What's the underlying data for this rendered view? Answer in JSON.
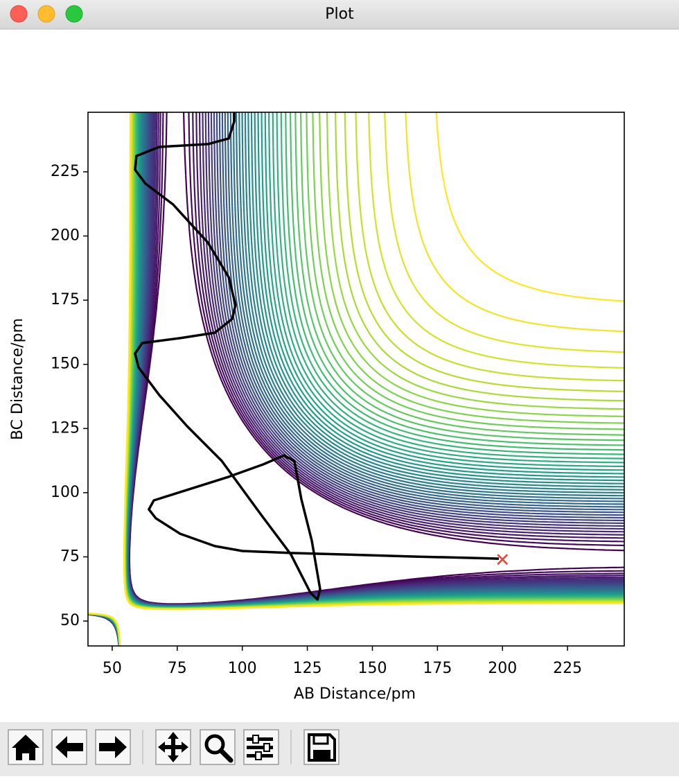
{
  "window": {
    "title": "Plot"
  },
  "chart_data": {
    "type": "contour",
    "xlabel": "AB Distance/pm",
    "ylabel": "BC Distance/pm",
    "xlim": [
      40.7,
      246.8
    ],
    "ylim": [
      40.3,
      248.2
    ],
    "xticks": [
      50,
      75,
      100,
      125,
      150,
      175,
      200,
      225
    ],
    "yticks": [
      50,
      75,
      100,
      125,
      150,
      175,
      200,
      225
    ],
    "colormap": "viridis",
    "trajectory": {
      "color": "#000000",
      "x": [
        198.6,
        188,
        166.7,
        140,
        118.7,
        100,
        89.4,
        76.1,
        66.8,
        64.1,
        66,
        76.1,
        94.8,
        108,
        116,
        120,
        122.7,
        126.7,
        129.9,
        128.9,
        126.2,
        118.7,
        106.7,
        92.1,
        78.8,
        68.1,
        60.1,
        58.8,
        61.5,
        76.1,
        89.4,
        96.1,
        97.4,
        94.8,
        86.8,
        73.4,
        62.8,
        58.8,
        59.3,
        68.1,
        86.8,
        94.8,
        96.9,
        96.9
      ],
      "y": [
        74.3,
        74.6,
        75.1,
        75.9,
        76.5,
        77.3,
        79.2,
        84,
        90,
        93.5,
        97,
        100.2,
        106.2,
        111,
        114.5,
        112.4,
        97.5,
        81.3,
        62.4,
        58.4,
        61,
        75.9,
        92.1,
        112.4,
        125.9,
        138,
        148.8,
        154.2,
        158.3,
        160.2,
        162.3,
        167.7,
        173.1,
        183.9,
        197.4,
        212.3,
        220.4,
        225.8,
        231.2,
        234.7,
        235.8,
        238,
        244.7,
        248.2
      ]
    },
    "end_point": {
      "x": 200,
      "y": 74,
      "color": "#e8493d"
    }
  }
}
